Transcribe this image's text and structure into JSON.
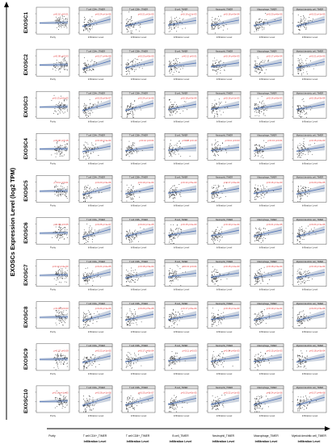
{
  "figure": {
    "y_axis_title": "EXOSCs Expression Level (log2 TPM)",
    "accent_color": "#e03030",
    "fit_color": "#4a6fb5",
    "band_color": "#b9c4d4"
  },
  "chart_data": {
    "type": "scatter",
    "layout": "grid",
    "rows": [
      "EXOSC1",
      "EXOSC2",
      "EXOSC3",
      "EXOSC4",
      "EXOSC5",
      "EXOSC6",
      "EXOSC7",
      "EXOSC8",
      "EXOSC9",
      "EXOSC10"
    ],
    "columns": [
      {
        "panel_title": "",
        "xlabel": "Purity"
      },
      {
        "panel_title": "T cell CD4+_TIMER",
        "xlabel": "Infiltration Level"
      },
      {
        "panel_title": "T cell CD8+_TIMER",
        "xlabel": "Infiltration Level"
      },
      {
        "panel_title": "B cell_TIMER",
        "xlabel": "Infiltration Level"
      },
      {
        "panel_title": "Neutrophil_TIMER",
        "xlabel": "Infiltration Level"
      },
      {
        "panel_title": "Macrophage_TIMER",
        "xlabel": "Infiltration Level"
      },
      {
        "panel_title": "Myeloid dendritic cell_TIMER",
        "xlabel": "Infiltration Level"
      }
    ],
    "bottom_labels": [
      "Purity",
      "T cell CD4+_TIMER",
      "T cell CD8+_TIMER",
      "B cell_TIMER",
      "Neutrophil_TIMER",
      "Macrophage_TIMER",
      "Myeloid dendritic cell_TIMER"
    ],
    "bottom_sublabel": "Infiltration Level",
    "stat_labels": [
      [
        "ρ=0.10 p=0.01",
        "ρ=0.24 p=1e-06",
        "ρ=0.21 p=2e-05",
        "ρ=0.16 p=1e-03",
        "ρ=0.18 p=3e-04",
        "ρ=0.20 p=6e-05",
        "ρ=0.22 p=1e-05"
      ],
      [
        "ρ=0.09 p=0.03",
        "ρ=0.27 p=4e-08",
        "ρ=0.20 p=5e-05",
        "ρ=0.12 p=0.01",
        "ρ=0.14 p=5e-03",
        "ρ=0.17 p=6e-04",
        "ρ=0.21 p=2e-05"
      ],
      [
        "ρ=0.13 p=2e-03",
        "ρ=0.25 p=3e-07",
        "ρ=0.24 p=1e-06",
        "ρ=0.18 p=3e-04",
        "ρ=0.16 p=1e-03",
        "ρ=0.14 p=5e-03",
        "ρ=0.18 p=3e-04"
      ],
      [
        "ρ=0.06 p=0.15",
        "ρ=0.19 p=1e-04",
        "ρ=0.12 p=0.01",
        "ρ=0.08 p=0.10",
        "ρ=0.11 p=0.03",
        "ρ=0.13 p=0.01",
        "ρ=0.15 p=2e-03"
      ],
      [
        "ρ=0.11 p=0.01",
        "ρ=0.23 p=3e-06",
        "ρ=0.19 p=1e-04",
        "ρ=0.14 p=5e-03",
        "ρ=0.17 p=6e-04",
        "ρ=0.16 p=1e-03",
        "ρ=0.20 p=6e-05"
      ],
      [
        "ρ=0.08 p=0.05",
        "ρ=0.26 p=1e-07",
        "ρ=0.22 p=1e-05",
        "ρ=0.15 p=2e-03",
        "ρ=0.19 p=1e-04",
        "ρ=0.21 p=2e-05",
        "ρ=0.24 p=1e-06"
      ],
      [
        "ρ=0.12 p=4e-03",
        "ρ=0.21 p=2e-05",
        "ρ=0.18 p=3e-04",
        "ρ=0.13 p=0.01",
        "ρ=0.15 p=2e-03",
        "ρ=0.18 p=3e-04",
        "ρ=0.19 p=1e-04"
      ],
      [
        "ρ=0.09 p=0.03",
        "ρ=0.24 p=1e-06",
        "ρ=0.20 p=5e-05",
        "ρ=0.17 p=6e-04",
        "ρ=0.16 p=1e-03",
        "ρ=0.19 p=1e-04",
        "ρ=0.23 p=3e-06"
      ],
      [
        "ρ=0.07 p=0.09",
        "ρ=0.22 p=1e-05",
        "ρ=0.17 p=6e-04",
        "ρ=0.11 p=0.03",
        "ρ=0.14 p=5e-03",
        "ρ=0.15 p=2e-03",
        "ρ=0.18 p=3e-04"
      ],
      [
        "ρ=0.14 p=1e-03",
        "ρ=0.28 p=1e-08",
        "ρ=0.25 p=3e-07",
        "ρ=0.20 p=5e-05",
        "ρ=0.22 p=1e-05",
        "ρ=0.24 p=1e-06",
        "ρ=0.27 p=4e-08"
      ]
    ],
    "panel_xlabel": "Infiltration Level",
    "grid": false
  }
}
